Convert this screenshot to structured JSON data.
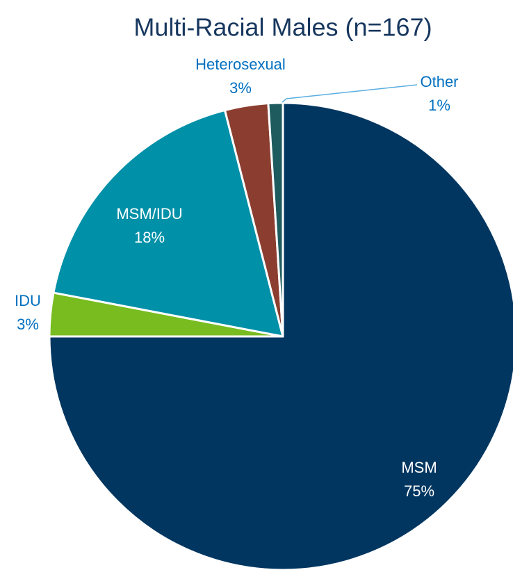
{
  "chart_data": {
    "type": "pie",
    "title": "Multi-Racial Males (n=167)",
    "categories": [
      "MSM",
      "IDU",
      "MSM/IDU",
      "Heterosexual",
      "Other"
    ],
    "values": [
      75,
      3,
      18,
      3,
      1
    ],
    "value_labels": [
      "75%",
      "3%",
      "18%",
      "3%",
      "1%"
    ],
    "colors": [
      "#003660",
      "#78bc20",
      "#0090a8",
      "#8b3e2f",
      "#1d5b5e"
    ]
  }
}
